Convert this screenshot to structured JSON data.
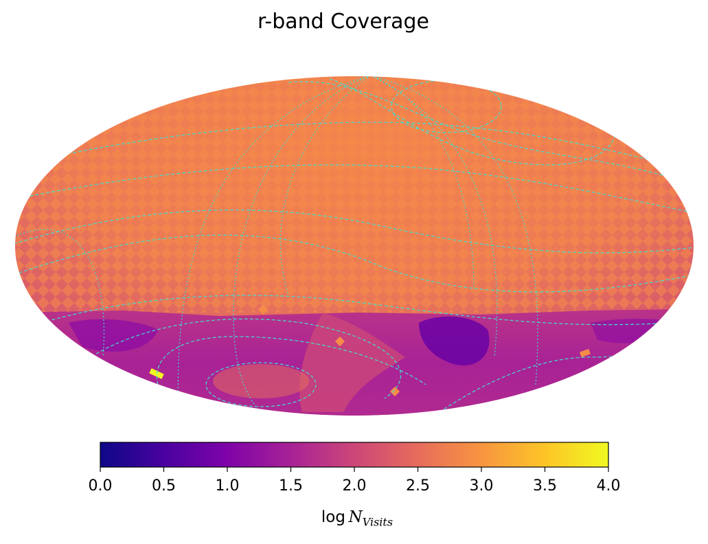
{
  "chart_data": {
    "type": "heatmap",
    "projection": "mollweide",
    "title": "r-band Coverage",
    "colormap": "plasma",
    "colorbar": {
      "min": 0.0,
      "max": 4.0,
      "ticks": [
        "0.0",
        "0.5",
        "1.0",
        "1.5",
        "2.0",
        "2.5",
        "3.0",
        "3.5",
        "4.0"
      ],
      "label_prefix": "log",
      "label_symbol": "N",
      "label_subscript": "Visits",
      "orientation": "horizontal"
    },
    "typical_values": {
      "northern_region_log_visits": 2.5,
      "southern_region_log_visits": 1.6,
      "lowest_patch_log_visits": 1.0,
      "brightest_spot_log_visits": 3.9
    },
    "overlay_line_color": "#40e0d0"
  }
}
